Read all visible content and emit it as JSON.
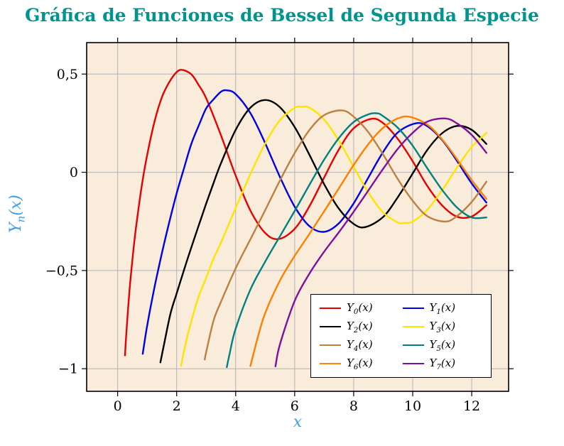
{
  "page": {
    "background": "#ffffff"
  },
  "title": {
    "text": "Gráfica de Funciones de Bessel de Segunda Especie",
    "color": "#009490"
  },
  "axes": {
    "x_label": "x",
    "y_label_base": "Y",
    "y_label_sub": "n",
    "y_label_paren": "(x)",
    "label_color": "#3f9fe8",
    "plot_background": "#f9ecda",
    "grid_color": "#b4b4b4",
    "frame_color": "#000000",
    "x_ticks": [
      {
        "v": 0,
        "label": "0"
      },
      {
        "v": 2,
        "label": "2"
      },
      {
        "v": 4,
        "label": "4"
      },
      {
        "v": 6,
        "label": "6"
      },
      {
        "v": 8,
        "label": "8"
      },
      {
        "v": 10,
        "label": "10"
      },
      {
        "v": 12,
        "label": "12"
      }
    ],
    "y_ticks": [
      {
        "v": 0.5,
        "label": "0,5"
      },
      {
        "v": 0,
        "label": "0"
      },
      {
        "v": -0.5,
        "label": "−0,5"
      },
      {
        "v": -1,
        "label": "−1"
      }
    ]
  },
  "legend_style": {
    "background": "#ffffff",
    "border_color": "#000000"
  },
  "chart_data": {
    "type": "line",
    "title": "Gráfica de Funciones de Bessel de Segunda Especie",
    "xlabel": "x",
    "ylabel": "Y_n(x)",
    "xlim": [
      -1.05,
      13.25
    ],
    "ylim": [
      -1.115,
      0.66
    ],
    "grid": true,
    "legend_position": "bottom-right",
    "series": [
      {
        "name": "Y_0(x)",
        "label_base": "Y",
        "label_sub": "0",
        "label_paren": "(x)",
        "color": "#e60000",
        "points": [
          [
            0.25,
            -0.932
          ],
          [
            0.3,
            -0.807
          ],
          [
            0.4,
            -0.606
          ],
          [
            0.5,
            -0.445
          ],
          [
            0.6,
            -0.309
          ],
          [
            0.8,
            -0.087
          ],
          [
            1.0,
            0.088
          ],
          [
            1.25,
            0.258
          ],
          [
            1.5,
            0.382
          ],
          [
            1.75,
            0.459
          ],
          [
            2.0,
            0.51
          ],
          [
            2.2,
            0.521
          ],
          [
            2.5,
            0.498
          ],
          [
            2.75,
            0.443
          ],
          [
            3.0,
            0.377
          ],
          [
            3.5,
            0.189
          ],
          [
            4.0,
            -0.017
          ],
          [
            4.5,
            -0.195
          ],
          [
            5.0,
            -0.309
          ],
          [
            5.45,
            -0.34
          ],
          [
            6.0,
            -0.288
          ],
          [
            6.5,
            -0.173
          ],
          [
            7.0,
            -0.026
          ],
          [
            7.5,
            0.117
          ],
          [
            8.0,
            0.224
          ],
          [
            8.6,
            0.272
          ],
          [
            9.0,
            0.25
          ],
          [
            9.5,
            0.169
          ],
          [
            10.0,
            0.056
          ],
          [
            10.5,
            -0.071
          ],
          [
            11.0,
            -0.169
          ],
          [
            11.5,
            -0.226
          ],
          [
            12.0,
            -0.225
          ],
          [
            12.5,
            -0.168
          ]
        ]
      },
      {
        "name": "Y_1(x)",
        "label_base": "Y",
        "label_sub": "1",
        "label_paren": "(x)",
        "color": "#0000e6",
        "points": [
          [
            0.85,
            -0.924
          ],
          [
            1.0,
            -0.781
          ],
          [
            1.25,
            -0.585
          ],
          [
            1.5,
            -0.412
          ],
          [
            1.75,
            -0.254
          ],
          [
            2.0,
            -0.107
          ],
          [
            2.25,
            0.021
          ],
          [
            2.5,
            0.146
          ],
          [
            2.75,
            0.238
          ],
          [
            3.0,
            0.325
          ],
          [
            3.25,
            0.371
          ],
          [
            3.5,
            0.41
          ],
          [
            3.7,
            0.417
          ],
          [
            4.0,
            0.398
          ],
          [
            4.5,
            0.301
          ],
          [
            5.0,
            0.148
          ],
          [
            5.5,
            -0.024
          ],
          [
            6.0,
            -0.175
          ],
          [
            6.5,
            -0.274
          ],
          [
            7.0,
            -0.303
          ],
          [
            7.5,
            -0.259
          ],
          [
            8.0,
            -0.158
          ],
          [
            8.5,
            -0.026
          ],
          [
            9.0,
            0.104
          ],
          [
            9.5,
            0.203
          ],
          [
            10.1,
            0.249
          ],
          [
            10.5,
            0.234
          ],
          [
            11.0,
            0.164
          ],
          [
            11.5,
            0.058
          ],
          [
            12.0,
            -0.057
          ],
          [
            12.5,
            -0.154
          ]
        ]
      },
      {
        "name": "Y_2(x)",
        "label_base": "Y",
        "label_sub": "2",
        "label_paren": "(x)",
        "color": "#000000",
        "points": [
          [
            1.45,
            -0.968
          ],
          [
            1.6,
            -0.855
          ],
          [
            1.8,
            -0.714
          ],
          [
            2.0,
            -0.617
          ],
          [
            2.25,
            -0.497
          ],
          [
            2.5,
            -0.381
          ],
          [
            2.75,
            -0.27
          ],
          [
            3.0,
            -0.16
          ],
          [
            3.25,
            -0.055
          ],
          [
            3.5,
            0.045
          ],
          [
            4.0,
            0.216
          ],
          [
            4.5,
            0.329
          ],
          [
            5.0,
            0.368
          ],
          [
            5.5,
            0.331
          ],
          [
            6.0,
            0.23
          ],
          [
            6.5,
            0.089
          ],
          [
            7.0,
            -0.061
          ],
          [
            7.5,
            -0.186
          ],
          [
            8.0,
            -0.263
          ],
          [
            8.4,
            -0.279
          ],
          [
            9.0,
            -0.227
          ],
          [
            9.5,
            -0.126
          ],
          [
            10.0,
            -0.006
          ],
          [
            10.5,
            0.115
          ],
          [
            11.0,
            0.199
          ],
          [
            11.5,
            0.236
          ],
          [
            12.0,
            0.216
          ],
          [
            12.5,
            0.144
          ]
        ]
      },
      {
        "name": "Y_3(x)",
        "label_base": "Y",
        "label_sub": "3",
        "label_paren": "(x)",
        "color": "#ffe400",
        "points": [
          [
            2.15,
            -0.986
          ],
          [
            2.3,
            -0.873
          ],
          [
            2.5,
            -0.756
          ],
          [
            2.75,
            -0.631
          ],
          [
            3.0,
            -0.538
          ],
          [
            3.25,
            -0.439
          ],
          [
            3.5,
            -0.359
          ],
          [
            4.0,
            -0.182
          ],
          [
            4.5,
            -0.009
          ],
          [
            5.0,
            0.146
          ],
          [
            5.5,
            0.265
          ],
          [
            6.0,
            0.328
          ],
          [
            6.25,
            0.333
          ],
          [
            6.5,
            0.329
          ],
          [
            7.0,
            0.268
          ],
          [
            7.5,
            0.16
          ],
          [
            8.0,
            0.027
          ],
          [
            8.5,
            -0.104
          ],
          [
            9.0,
            -0.205
          ],
          [
            9.5,
            -0.256
          ],
          [
            9.7,
            -0.258
          ],
          [
            10.0,
            -0.251
          ],
          [
            10.5,
            -0.19
          ],
          [
            11.0,
            -0.091
          ],
          [
            11.5,
            0.024
          ],
          [
            12.0,
            0.129
          ],
          [
            12.5,
            0.2
          ]
        ]
      },
      {
        "name": "Y_4(x)",
        "label_base": "Y",
        "label_sub": "4",
        "label_paren": "(x)",
        "color": "#bc8040",
        "points": [
          [
            2.95,
            -0.953
          ],
          [
            3.0,
            -0.916
          ],
          [
            3.25,
            -0.755
          ],
          [
            3.5,
            -0.66
          ],
          [
            4.0,
            -0.489
          ],
          [
            4.5,
            -0.341
          ],
          [
            5.0,
            -0.193
          ],
          [
            5.5,
            -0.042
          ],
          [
            6.0,
            0.098
          ],
          [
            6.5,
            0.215
          ],
          [
            7.0,
            0.291
          ],
          [
            7.6,
            0.315
          ],
          [
            8.0,
            0.283
          ],
          [
            8.5,
            0.203
          ],
          [
            9.0,
            0.09
          ],
          [
            9.5,
            -0.036
          ],
          [
            10.0,
            -0.145
          ],
          [
            10.5,
            -0.224
          ],
          [
            11.1,
            -0.251
          ],
          [
            11.5,
            -0.223
          ],
          [
            12.0,
            -0.151
          ],
          [
            12.5,
            -0.048
          ]
        ]
      },
      {
        "name": "Y_5(x)",
        "label_base": "Y",
        "label_sub": "5",
        "label_paren": "(x)",
        "color": "#008080",
        "points": [
          [
            3.7,
            -0.992
          ],
          [
            3.8,
            -0.92
          ],
          [
            4.0,
            -0.796
          ],
          [
            4.5,
            -0.597
          ],
          [
            5.0,
            -0.455
          ],
          [
            5.5,
            -0.326
          ],
          [
            6.0,
            -0.197
          ],
          [
            6.5,
            -0.064
          ],
          [
            7.0,
            0.065
          ],
          [
            7.5,
            0.175
          ],
          [
            8.0,
            0.256
          ],
          [
            8.5,
            0.295
          ],
          [
            8.8,
            0.3
          ],
          [
            9.0,
            0.285
          ],
          [
            9.5,
            0.226
          ],
          [
            10.0,
            0.135
          ],
          [
            10.5,
            0.019
          ],
          [
            11.0,
            -0.09
          ],
          [
            11.5,
            -0.179
          ],
          [
            12.0,
            -0.23
          ],
          [
            12.5,
            -0.23
          ]
        ]
      },
      {
        "name": "Y_6(x)",
        "label_base": "Y",
        "label_sub": "6",
        "label_paren": "(x)",
        "color": "#ff8000",
        "points": [
          [
            4.5,
            -0.986
          ],
          [
            4.6,
            -0.926
          ],
          [
            4.75,
            -0.84
          ],
          [
            5.0,
            -0.717
          ],
          [
            5.5,
            -0.551
          ],
          [
            6.0,
            -0.426
          ],
          [
            6.5,
            -0.314
          ],
          [
            7.0,
            -0.198
          ],
          [
            7.5,
            -0.081
          ],
          [
            8.0,
            0.037
          ],
          [
            8.5,
            0.144
          ],
          [
            9.0,
            0.227
          ],
          [
            9.5,
            0.274
          ],
          [
            9.9,
            0.282
          ],
          [
            10.5,
            0.242
          ],
          [
            11.0,
            0.167
          ],
          [
            11.5,
            0.067
          ],
          [
            12.0,
            -0.04
          ],
          [
            12.5,
            -0.136
          ]
        ]
      },
      {
        "name": "Y_7(x)",
        "label_base": "Y",
        "label_sub": "7",
        "label_paren": "(x)",
        "color": "#7f0f9f",
        "points": [
          [
            5.35,
            -0.988
          ],
          [
            5.5,
            -0.876
          ],
          [
            6.0,
            -0.655
          ],
          [
            6.5,
            -0.516
          ],
          [
            7.0,
            -0.404
          ],
          [
            7.5,
            -0.305
          ],
          [
            8.0,
            -0.201
          ],
          [
            8.5,
            -0.092
          ],
          [
            9.0,
            0.018
          ],
          [
            9.5,
            0.12
          ],
          [
            10.0,
            0.201
          ],
          [
            10.5,
            0.258
          ],
          [
            11.1,
            0.274
          ],
          [
            11.5,
            0.249
          ],
          [
            12.0,
            0.19
          ],
          [
            12.5,
            0.099
          ]
        ]
      }
    ]
  }
}
